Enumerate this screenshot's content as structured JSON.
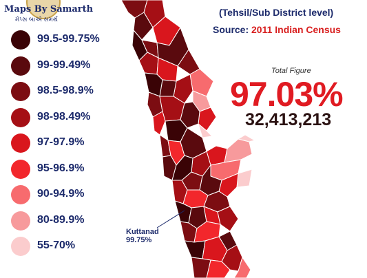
{
  "logo": {
    "title": "Maps By Samarth",
    "subtitle": "મેપ્સ બાએ સમર્થ"
  },
  "header": {
    "level": "(Tehsil/Sub District level)",
    "source_key": "Source:",
    "source_value": "2011 Indian Census"
  },
  "summary": {
    "label": "Total Figure",
    "percentage": "97.03%",
    "population": "32,413,213"
  },
  "legend": [
    {
      "label": "99.5-99.75%",
      "color": "#3a0306"
    },
    {
      "label": "99-99.49%",
      "color": "#5a0a0e"
    },
    {
      "label": "98.5-98.9%",
      "color": "#7c0d12"
    },
    {
      "label": "98-98.49%",
      "color": "#a50f15"
    },
    {
      "label": "97-97.9%",
      "color": "#d9161d"
    },
    {
      "label": "95-96.9%",
      "color": "#f2272c"
    },
    {
      "label": "90-94.9%",
      "color": "#f76b6e"
    },
    {
      "label": "80-89.9%",
      "color": "#f79a9c"
    },
    {
      "label": "55-70%",
      "color": "#fbcccd"
    }
  ],
  "callout": {
    "name": "Kuttanad",
    "value": "99.75%"
  },
  "colors": {
    "border": "#ffffff",
    "title_blue": "#1c2a6b",
    "accent_red": "#e01b22"
  }
}
